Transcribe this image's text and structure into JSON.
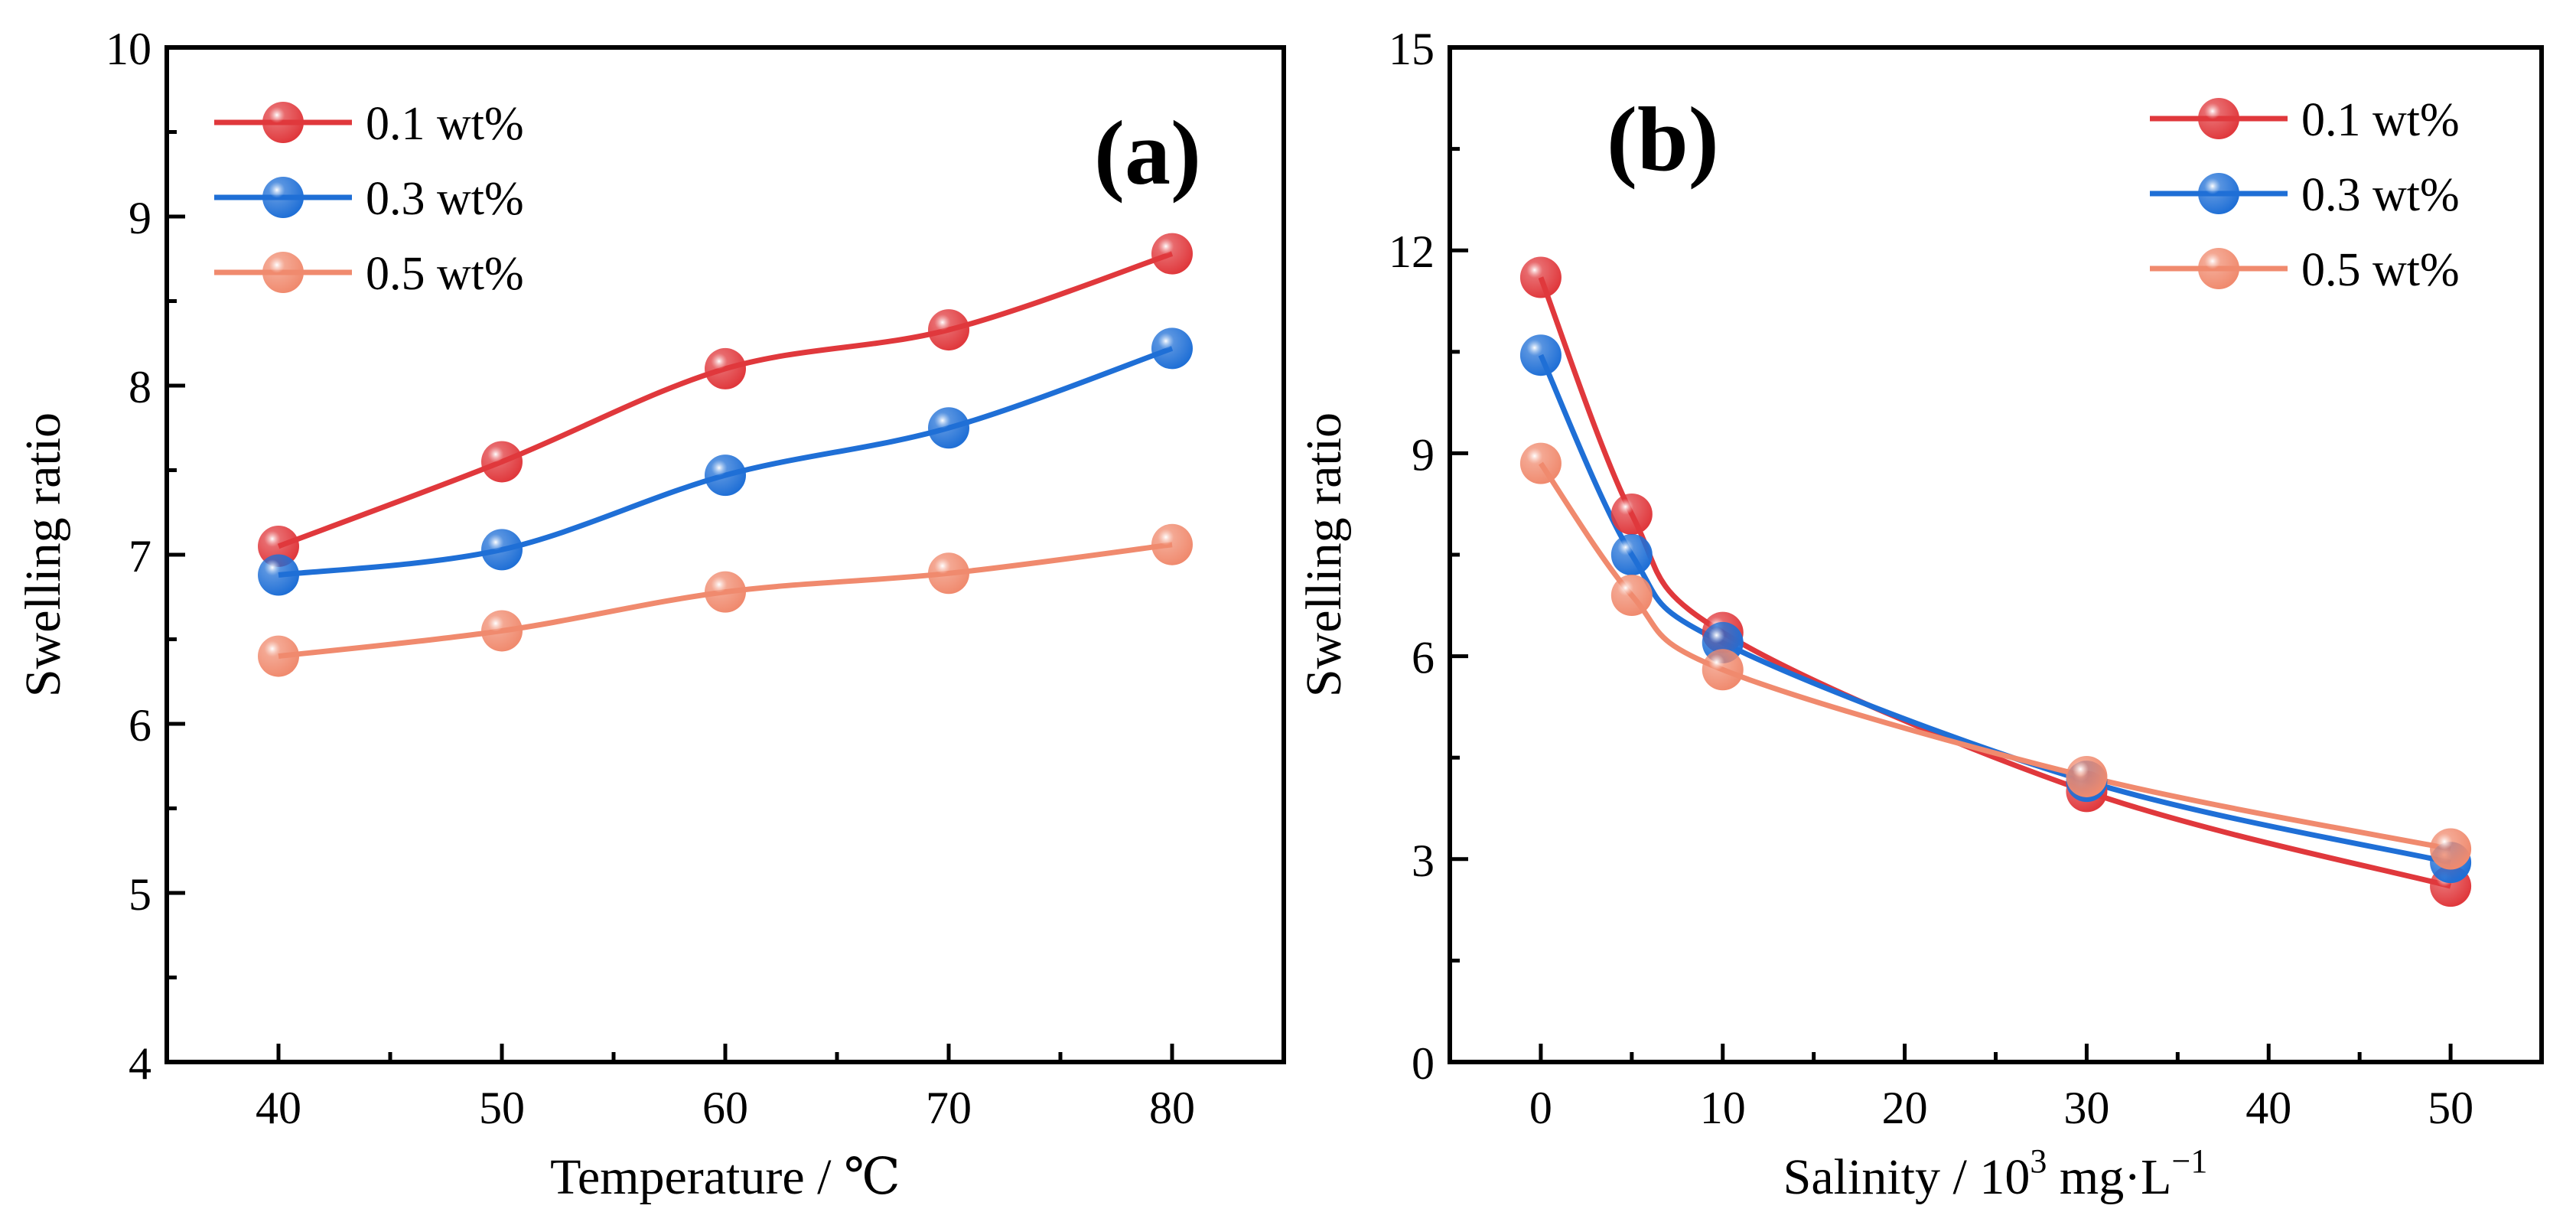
{
  "chart_data": [
    {
      "type": "line",
      "panel_label": "(a)",
      "xlabel": "Temperature / ℃",
      "ylabel": "Swelling ratio",
      "x": [
        40,
        50,
        60,
        70,
        80
      ],
      "xlim": [
        35,
        85
      ],
      "ylim": [
        4,
        10
      ],
      "xticks": [
        40,
        50,
        60,
        70,
        80
      ],
      "yticks": [
        4,
        5,
        6,
        7,
        8,
        9,
        10
      ],
      "legend_position": "top-left",
      "series": [
        {
          "name": "0.1 wt%",
          "color": "#e0383c",
          "values": [
            7.05,
            7.55,
            8.1,
            8.33,
            8.78
          ]
        },
        {
          "name": "0.3 wt%",
          "color": "#1f6fd6",
          "values": [
            6.88,
            7.03,
            7.47,
            7.75,
            8.22
          ]
        },
        {
          "name": "0.5 wt%",
          "color": "#f08a6e",
          "values": [
            6.4,
            6.55,
            6.78,
            6.89,
            7.06
          ]
        }
      ]
    },
    {
      "type": "line",
      "panel_label": "(b)",
      "xlabel": "Salinity / 10",
      "xlabel_sup": "3",
      "xlabel_rest": " mg·L",
      "xlabel_rest_sup": "−1",
      "ylabel": "Swelling ratio",
      "x": [
        0,
        5,
        10,
        30,
        50
      ],
      "xlim": [
        -5,
        55
      ],
      "ylim": [
        0,
        15
      ],
      "xticks": [
        0,
        10,
        20,
        30,
        40,
        50
      ],
      "yticks": [
        0,
        3,
        6,
        9,
        12,
        15
      ],
      "legend_position": "top-right",
      "series": [
        {
          "name": "0.1 wt%",
          "color": "#e0383c",
          "values": [
            11.6,
            8.1,
            6.35,
            4.0,
            2.6
          ]
        },
        {
          "name": "0.3 wt%",
          "color": "#1f6fd6",
          "values": [
            10.45,
            7.5,
            6.2,
            4.15,
            2.95
          ]
        },
        {
          "name": "0.5 wt%",
          "color": "#f08a6e",
          "values": [
            8.85,
            6.9,
            5.8,
            4.22,
            3.15
          ]
        }
      ]
    }
  ]
}
